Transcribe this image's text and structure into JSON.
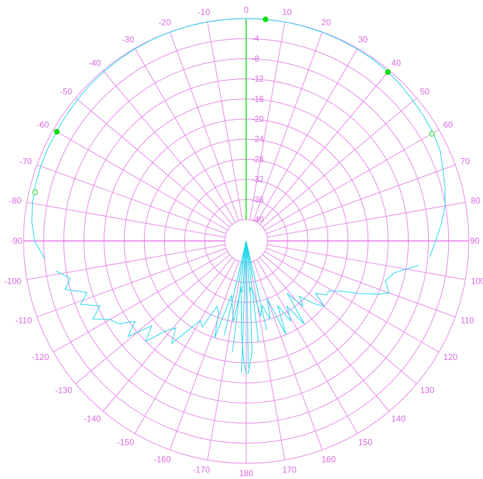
{
  "chart_data": {
    "type": "line",
    "plot": "polar",
    "angle_unit": "degrees",
    "radial_unit": "dB",
    "angle_ticks": [
      0,
      10,
      20,
      30,
      40,
      50,
      60,
      70,
      80,
      90,
      100,
      110,
      120,
      130,
      140,
      150,
      160,
      170,
      180,
      -170,
      -160,
      -150,
      -140,
      -130,
      -120,
      -110,
      -100,
      -90,
      -80,
      -70,
      -60,
      -50,
      -40,
      -30,
      -20,
      -10
    ],
    "angle_tick_labels": [
      "0",
      "10",
      "20",
      "30",
      "40",
      "50",
      "60",
      "70",
      "80",
      "90",
      "100",
      "110",
      "120",
      "130",
      "140",
      "150",
      "160",
      "170",
      "180",
      "-170",
      "-160",
      "-150",
      "-140",
      "-130",
      "-120",
      "-110",
      "-100",
      "-90",
      "-80",
      "-70",
      "-60",
      "-50",
      "-40",
      "-30",
      "-20",
      "-10"
    ],
    "radial_ticks": [
      0,
      -4,
      -8,
      -12,
      -16,
      -20,
      -24,
      -28,
      -32,
      -36,
      -40
    ],
    "radial_tick_labels": [
      "0",
      "-4",
      "-8",
      "-12",
      "-16",
      "-20",
      "-24",
      "-28",
      "-32",
      "-36",
      "-40"
    ],
    "rlim": [
      -40,
      0
    ],
    "grid": true,
    "colors": {
      "grid": "#e58ae8",
      "labels": "#d86adf",
      "trace": "#20d6ea",
      "zero_axis": "#29d829",
      "markers": "#10dd10"
    },
    "series": [
      {
        "theta": [
          -95,
          -90,
          -85,
          -80,
          -75,
          -70,
          -65,
          -60,
          -55,
          -50,
          -45,
          -40,
          -35,
          -30,
          -25,
          -20,
          -15,
          -10,
          -5,
          0,
          5,
          10,
          15,
          20,
          25,
          30,
          35,
          40,
          45,
          50,
          55,
          60,
          65,
          70,
          75,
          80,
          85,
          90,
          95
        ],
        "r": [
          -4,
          -2.2,
          -1.5,
          -1.1,
          -0.9,
          -0.8,
          -0.75,
          -0.7,
          -0.6,
          -0.5,
          -0.35,
          -0.25,
          -0.15,
          -0.1,
          -0.05,
          -0.02,
          0,
          0,
          0,
          0,
          0,
          0,
          -0.02,
          -0.05,
          -0.1,
          -0.15,
          -0.2,
          -0.35,
          -0.6,
          -0.9,
          -1.1,
          -1.3,
          -1.7,
          -2.6,
          -3.3,
          -4.1,
          -5.3,
          -6.6,
          -7.6
        ]
      },
      {
        "theta": [
          98,
          102,
          106,
          110,
          112,
          115,
          118,
          121,
          124,
          127,
          130,
          133,
          136,
          139,
          142,
          145,
          148,
          151,
          154,
          157,
          160,
          163,
          166,
          169,
          172,
          175,
          177,
          179,
          180,
          -179,
          -177,
          -174,
          -171,
          -168,
          -165,
          -162,
          -159,
          -156,
          -153,
          -150,
          -147,
          -144,
          -141,
          -138,
          -135,
          -132,
          -129,
          -126,
          -123,
          -120,
          -117,
          -114,
          -111,
          -108,
          -105,
          -102,
          -99
        ],
        "r": [
          -9.5,
          -14,
          -15.5,
          -14,
          -16,
          -19.5,
          -23,
          -25,
          -25,
          -27,
          -24,
          -26,
          -29,
          -27,
          -31,
          -24,
          -29,
          -26,
          -30,
          -24,
          -32,
          -28,
          -31,
          -29,
          -34,
          -35,
          -22,
          -18,
          -18,
          -20,
          -26,
          -35,
          -28,
          -31,
          -33,
          -24,
          -29,
          -30,
          -25,
          -26,
          -23,
          -19,
          -22,
          -20,
          -16,
          -19,
          -14,
          -17,
          -14,
          -13,
          -10,
          -12.5,
          -9,
          -11,
          -7,
          -8.5,
          -6
        ]
      }
    ],
    "markers": [
      {
        "theta": 5,
        "r": 0,
        "style": "filled"
      },
      {
        "theta": 40,
        "r": -0.4,
        "style": "filled"
      },
      {
        "theta": 60,
        "r": -1.6,
        "style": "open"
      },
      {
        "theta": -60,
        "r": -0.8,
        "style": "filled"
      },
      {
        "theta": -77,
        "r": -1.2,
        "style": "open"
      }
    ]
  }
}
